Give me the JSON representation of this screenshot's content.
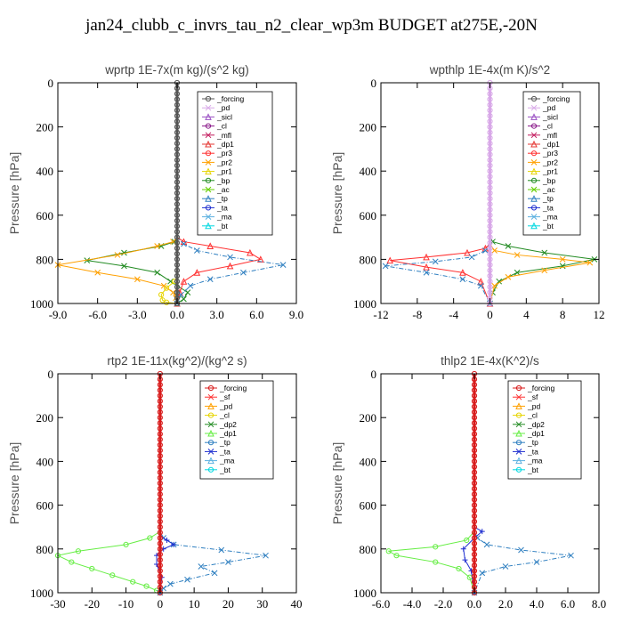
{
  "figure_title": "jan24_clubb_c_invrs_tau_n2_clear_wp3m  BUDGET at275E,-20N",
  "colors": {
    "forcing": "#555555",
    "pd": "#d8a8e8",
    "sicl": "#9a4fc4",
    "cl": "#8a1a8a",
    "mfl": "#c2185b",
    "dp1": "#e53935",
    "pr3": "#ff3030",
    "pr2": "#ffa000",
    "pr1": "#e6d400",
    "bp": "#228b22",
    "ac": "#66d000",
    "tp": "#2f7fc0",
    "ta": "#1f2fd0",
    "ma": "#5bb0e0",
    "bt": "#00d8e0",
    "sf": "#ff3030",
    "dp2": "#228b22",
    "dp1g": "#66ee44",
    "forcing_red": "#d81b1b"
  },
  "chart_data": [
    {
      "type": "line",
      "title": "wprtp  1E-7x(m kg)/(s^2 kg)",
      "ylabel": "Pressure [hPa]",
      "xlim": [
        -9,
        9
      ],
      "ylim": [
        1000,
        0
      ],
      "xticks": [
        "-9.0",
        "-6.0",
        "-3.0",
        "0.0",
        "3.0",
        "6.0",
        "9.0"
      ],
      "xtick_values": [
        -9,
        -6,
        -3,
        0,
        3,
        6,
        9
      ],
      "yticks": [
        "0",
        "200",
        "400",
        "600",
        "800",
        "1000"
      ],
      "ytick_values": [
        0,
        200,
        400,
        600,
        800,
        1000
      ],
      "legend": [
        "_forcing",
        "_pd",
        "_sicl",
        "_cl",
        "_mfl",
        "_dp1",
        "_pr3",
        "_pr2",
        "_pr1",
        "_bp",
        "_ac",
        "_tp",
        "_ta",
        "_ma",
        "_bt"
      ],
      "legend_colors": [
        "forcing",
        "pd",
        "sicl",
        "cl",
        "mfl",
        "dp1",
        "pr3",
        "pr2",
        "pr1",
        "bp",
        "ac",
        "tp",
        "ta",
        "ma",
        "bt"
      ],
      "series": [
        {
          "name": "_bp",
          "color": "bp",
          "marker": "x",
          "x": [
            0,
            0,
            -0.2,
            -1.2,
            -4,
            -6.8,
            -4,
            -1.5,
            -0.5,
            0.8,
            0.5,
            0
          ],
          "y": [
            0,
            700,
            720,
            740,
            770,
            805,
            830,
            860,
            900,
            950,
            980,
            1000
          ]
        },
        {
          "name": "_pr3",
          "color": "pr3",
          "marker": "tri",
          "x": [
            0,
            0,
            0.5,
            2.5,
            5.5,
            6.3,
            4,
            1.5,
            0.5,
            0.2,
            0
          ],
          "y": [
            0,
            700,
            720,
            740,
            770,
            800,
            830,
            860,
            900,
            950,
            1000
          ]
        },
        {
          "name": "_pr2",
          "color": "pr2",
          "marker": "x",
          "x": [
            0,
            0,
            -0.3,
            -1.5,
            -4.5,
            -9,
            -6,
            -3,
            -1,
            -0.3,
            -0.1,
            0
          ],
          "y": [
            0,
            700,
            720,
            740,
            780,
            825,
            860,
            890,
            920,
            950,
            975,
            1000
          ]
        },
        {
          "name": "_pr1",
          "color": "pr1",
          "marker": "circ",
          "x": [
            0,
            0,
            -0.2,
            -0.8,
            -1.2,
            -1.1,
            -0.8,
            0
          ],
          "y": [
            0,
            880,
            900,
            930,
            960,
            985,
            995,
            1000
          ]
        },
        {
          "name": "_tp",
          "color": "tp",
          "marker": "x",
          "x": [
            0,
            0,
            0.5,
            1.5,
            4,
            8,
            5,
            2.5,
            1,
            0.3,
            0
          ],
          "y": [
            0,
            700,
            730,
            760,
            790,
            825,
            860,
            890,
            920,
            960,
            1000
          ]
        },
        {
          "name": "_forcing",
          "color": "forcing",
          "marker": "circ",
          "x": [
            0,
            0
          ],
          "y": [
            0,
            1000
          ]
        }
      ]
    },
    {
      "type": "line",
      "title": "wpthlp  1E-4x(m K)/s^2",
      "ylabel": "Pressure [hPa]",
      "xlim": [
        -12,
        12
      ],
      "ylim": [
        1000,
        0
      ],
      "xticks": [
        "-12",
        "-8",
        "-4",
        "0",
        "4",
        "8",
        "12"
      ],
      "xtick_values": [
        -12,
        -8,
        -4,
        0,
        4,
        8,
        12
      ],
      "yticks": [
        "0",
        "200",
        "400",
        "600",
        "800",
        "1000"
      ],
      "ytick_values": [
        0,
        200,
        400,
        600,
        800,
        1000
      ],
      "legend": [
        "_forcing",
        "_pd",
        "_sicl",
        "_cl",
        "_mfl",
        "_dp1",
        "_pr3",
        "_pr2",
        "_pr1",
        "_bp",
        "_ac",
        "_tp",
        "_ta",
        "_ma",
        "_bt"
      ],
      "legend_colors": [
        "forcing",
        "pd",
        "sicl",
        "cl",
        "mfl",
        "dp1",
        "pr3",
        "pr2",
        "pr1",
        "bp",
        "ac",
        "tp",
        "ta",
        "ma",
        "bt"
      ],
      "series": [
        {
          "name": "_bp",
          "color": "bp",
          "marker": "x",
          "x": [
            0,
            0,
            0.3,
            2,
            6,
            11.5,
            8,
            3,
            1,
            0.3,
            0
          ],
          "y": [
            0,
            700,
            720,
            740,
            770,
            800,
            830,
            860,
            900,
            950,
            1000
          ]
        },
        {
          "name": "_pr2",
          "color": "pr2",
          "marker": "x",
          "x": [
            0,
            0,
            0.5,
            3,
            8,
            11,
            6,
            2,
            0.5,
            0
          ],
          "y": [
            0,
            730,
            760,
            780,
            800,
            815,
            850,
            880,
            920,
            1000
          ]
        },
        {
          "name": "_pr3",
          "color": "pr3",
          "marker": "tri",
          "x": [
            0,
            0,
            -0.5,
            -2.5,
            -7,
            -11,
            -7,
            -3,
            -1,
            0
          ],
          "y": [
            0,
            730,
            750,
            770,
            790,
            805,
            835,
            860,
            900,
            1000
          ]
        },
        {
          "name": "_tp",
          "color": "tp",
          "marker": "x",
          "x": [
            0,
            0,
            -0.5,
            -2,
            -6,
            -11.5,
            -7,
            -3,
            -1,
            0
          ],
          "y": [
            0,
            730,
            760,
            790,
            810,
            830,
            860,
            890,
            920,
            1000
          ]
        },
        {
          "name": "_forcing",
          "color": "pd",
          "marker": "circ",
          "x": [
            0,
            0
          ],
          "y": [
            0,
            1000
          ]
        }
      ]
    },
    {
      "type": "line",
      "title": "rtp2  1E-11x(kg^2)/(kg^2 s)",
      "ylabel": "Pressure [hPa]",
      "xlim": [
        -30,
        40
      ],
      "ylim": [
        1000,
        0
      ],
      "xticks": [
        "-30",
        "-20",
        "-10",
        "0",
        "10",
        "20",
        "30",
        "40"
      ],
      "xtick_values": [
        -30,
        -20,
        -10,
        0,
        10,
        20,
        30,
        40
      ],
      "yticks": [
        "0",
        "200",
        "400",
        "600",
        "800",
        "1000"
      ],
      "ytick_values": [
        0,
        200,
        400,
        600,
        800,
        1000
      ],
      "legend": [
        "_forcing",
        "_sf",
        "_pd",
        "_cl",
        "_dp2",
        "_dp1",
        "_tp",
        "_ta",
        "_ma",
        "_bt"
      ],
      "legend_colors": [
        "forcing_red",
        "sf",
        "pr2",
        "pr1",
        "dp2",
        "dp1g",
        "tp",
        "ta",
        "ma",
        "bt"
      ],
      "series": [
        {
          "name": "_dp1",
          "color": "dp1g",
          "marker": "circ",
          "x": [
            0,
            0,
            -3,
            -10,
            -24,
            -30,
            -26,
            -20,
            -14,
            -8,
            -4,
            -1,
            0
          ],
          "y": [
            0,
            720,
            750,
            780,
            810,
            830,
            860,
            890,
            920,
            950,
            970,
            990,
            1000
          ]
        },
        {
          "name": "_tp",
          "color": "tp",
          "marker": "x",
          "x": [
            0,
            0,
            1,
            4,
            18,
            31,
            20,
            12,
            16,
            8,
            3,
            1,
            0
          ],
          "y": [
            0,
            720,
            750,
            780,
            805,
            830,
            860,
            880,
            910,
            940,
            960,
            980,
            1000
          ]
        },
        {
          "name": "_ta",
          "color": "ta",
          "marker": "plus",
          "x": [
            0,
            0,
            2,
            4,
            1,
            -1,
            -1,
            0.5,
            0
          ],
          "y": [
            0,
            740,
            760,
            780,
            800,
            830,
            870,
            930,
            1000
          ]
        },
        {
          "name": "_forcing",
          "color": "forcing_red",
          "marker": "circ",
          "x": [
            0,
            0
          ],
          "y": [
            0,
            1000
          ]
        }
      ]
    },
    {
      "type": "line",
      "title": "thlp2  1E-4x(K^2)/s",
      "ylabel": "Pressure [hPa]",
      "xlim": [
        -6,
        8
      ],
      "ylim": [
        1000,
        0
      ],
      "xticks": [
        "-6.0",
        "-4.0",
        "-2.0",
        "0.0",
        "2.0",
        "4.0",
        "6.0",
        "8.0"
      ],
      "xtick_values": [
        -6,
        -4,
        -2,
        0,
        2,
        4,
        6,
        8
      ],
      "yticks": [
        "0",
        "200",
        "400",
        "600",
        "800",
        "1000"
      ],
      "ytick_values": [
        0,
        200,
        400,
        600,
        800,
        1000
      ],
      "legend": [
        "_forcing",
        "_sf",
        "_pd",
        "_cl",
        "_dp2",
        "_dp1",
        "_tp",
        "_ta",
        "_ma",
        "_bt"
      ],
      "legend_colors": [
        "forcing_red",
        "sf",
        "pr2",
        "pr1",
        "dp2",
        "dp1g",
        "tp",
        "ta",
        "ma",
        "bt"
      ],
      "series": [
        {
          "name": "_dp1",
          "color": "dp1g",
          "marker": "circ",
          "x": [
            0,
            0,
            -0.5,
            -2.5,
            -5.5,
            -5,
            -2.5,
            -1,
            -0.3,
            0
          ],
          "y": [
            0,
            720,
            760,
            790,
            810,
            830,
            860,
            890,
            930,
            1000
          ]
        },
        {
          "name": "_tp",
          "color": "tp",
          "marker": "x",
          "x": [
            0,
            0,
            0.2,
            0.8,
            3,
            6.2,
            4,
            2,
            0.5,
            0
          ],
          "y": [
            0,
            720,
            750,
            780,
            805,
            830,
            860,
            880,
            910,
            1000
          ]
        },
        {
          "name": "_ta",
          "color": "ta",
          "marker": "plus",
          "x": [
            0,
            0,
            0.5,
            0,
            -0.7,
            -0.6,
            -0.2,
            0
          ],
          "y": [
            0,
            700,
            720,
            750,
            800,
            850,
            900,
            1000
          ]
        },
        {
          "name": "_forcing",
          "color": "forcing_red",
          "marker": "circ",
          "x": [
            0,
            0
          ],
          "y": [
            0,
            1000
          ]
        }
      ]
    }
  ]
}
